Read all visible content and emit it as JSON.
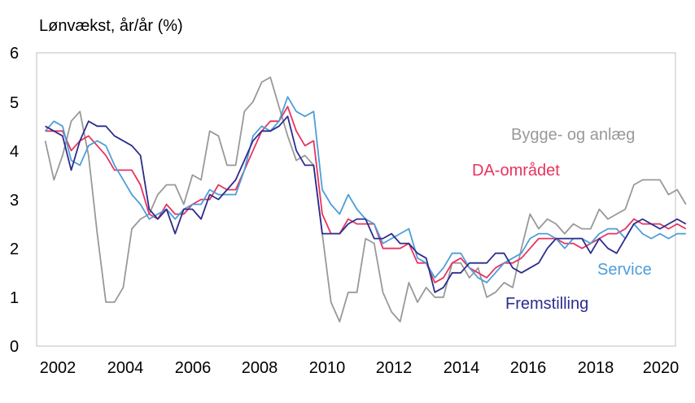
{
  "chart_data": {
    "type": "line",
    "title": "",
    "ylabel": "Lønvækst, år/år (%)",
    "xlabel": "",
    "xlim": [
      2001.75,
      2020.2
    ],
    "ylim": [
      0,
      6
    ],
    "x_ticks": [
      "2002",
      "2004",
      "2006",
      "2008",
      "2010",
      "2012",
      "2014",
      "2016",
      "2018",
      "2020"
    ],
    "y_ticks": [
      "0",
      "1",
      "2",
      "3",
      "4",
      "5",
      "6"
    ],
    "grid": false,
    "x_start": 2002,
    "x_step": 0.25,
    "series": [
      {
        "name": "Bygge- og anlæg",
        "color": "#999999",
        "values": [
          4.2,
          3.4,
          3.9,
          4.6,
          4.8,
          3.9,
          2.3,
          0.9,
          0.9,
          1.2,
          2.4,
          2.6,
          2.7,
          3.1,
          3.3,
          3.3,
          2.9,
          3.5,
          3.4,
          4.4,
          4.3,
          3.7,
          3.7,
          4.8,
          5.0,
          5.4,
          5.5,
          4.9,
          4.3,
          3.8,
          3.9,
          3.7,
          2.3,
          0.9,
          0.5,
          1.1,
          1.1,
          2.2,
          2.1,
          1.1,
          0.7,
          0.5,
          1.3,
          0.9,
          1.2,
          1.0,
          1.0,
          1.7,
          1.7,
          1.4,
          1.6,
          1.0,
          1.1,
          1.3,
          1.2,
          2.0,
          2.7,
          2.4,
          2.6,
          2.5,
          2.3,
          2.5,
          2.4,
          2.4,
          2.8,
          2.6,
          2.7,
          2.8,
          3.3,
          3.4,
          3.4,
          3.4,
          3.1,
          3.2,
          2.9
        ]
      },
      {
        "name": "DA-området",
        "color": "#e8335e",
        "values": [
          4.4,
          4.4,
          4.4,
          4.0,
          4.2,
          4.3,
          4.1,
          3.9,
          3.6,
          3.6,
          3.6,
          3.3,
          2.7,
          2.6,
          2.9,
          2.7,
          2.7,
          2.9,
          3.0,
          3.0,
          3.3,
          3.2,
          3.2,
          3.6,
          4.0,
          4.4,
          4.6,
          4.6,
          4.9,
          4.4,
          4.1,
          4.2,
          2.7,
          2.3,
          2.3,
          2.6,
          2.5,
          2.5,
          2.5,
          2.0,
          2.0,
          2.0,
          2.1,
          1.7,
          1.7,
          1.3,
          1.4,
          1.7,
          1.8,
          1.6,
          1.5,
          1.4,
          1.6,
          1.7,
          1.7,
          1.8,
          2.0,
          2.2,
          2.2,
          2.2,
          2.1,
          2.1,
          2.0,
          2.1,
          2.2,
          2.3,
          2.3,
          2.4,
          2.6,
          2.5,
          2.5,
          2.5,
          2.4,
          2.5,
          2.4
        ]
      },
      {
        "name": "Service",
        "color": "#4d9ed8",
        "values": [
          4.4,
          4.6,
          4.5,
          3.8,
          3.7,
          4.1,
          4.2,
          4.1,
          3.7,
          3.4,
          3.1,
          2.9,
          2.6,
          2.7,
          2.8,
          2.6,
          2.8,
          2.9,
          2.9,
          3.2,
          3.1,
          3.1,
          3.1,
          3.6,
          4.3,
          4.5,
          4.4,
          4.6,
          5.1,
          4.8,
          4.7,
          4.8,
          3.2,
          2.9,
          2.7,
          3.1,
          2.8,
          2.6,
          2.5,
          2.1,
          2.2,
          2.3,
          2.4,
          1.8,
          1.7,
          1.4,
          1.6,
          1.9,
          1.9,
          1.6,
          1.4,
          1.3,
          1.5,
          1.7,
          1.8,
          1.9,
          2.2,
          2.3,
          2.3,
          2.2,
          2.0,
          2.2,
          2.2,
          2.1,
          2.3,
          2.4,
          2.4,
          2.2,
          2.5,
          2.3,
          2.2,
          2.3,
          2.2,
          2.3,
          2.3
        ]
      },
      {
        "name": "Fremstilling",
        "color": "#2b2d8c",
        "values": [
          4.5,
          4.4,
          4.3,
          3.6,
          4.2,
          4.6,
          4.5,
          4.5,
          4.3,
          4.2,
          4.1,
          3.9,
          2.8,
          2.6,
          2.8,
          2.3,
          2.8,
          2.8,
          2.6,
          3.1,
          3.0,
          3.2,
          3.4,
          3.8,
          4.2,
          4.4,
          4.4,
          4.5,
          4.7,
          4.0,
          3.7,
          3.7,
          2.3,
          2.3,
          2.3,
          2.5,
          2.6,
          2.6,
          2.2,
          2.2,
          2.3,
          2.1,
          2.1,
          1.9,
          1.8,
          1.1,
          1.2,
          1.5,
          1.5,
          1.7,
          1.7,
          1.7,
          1.9,
          1.9,
          1.6,
          1.5,
          1.6,
          1.7,
          2.0,
          2.2,
          2.2,
          2.2,
          2.2,
          1.9,
          2.2,
          2.0,
          1.9,
          2.2,
          2.5,
          2.6,
          2.5,
          2.4,
          2.5,
          2.6,
          2.5
        ]
      }
    ],
    "annotations": [
      {
        "text": "Bygge- og anlæg",
        "color": "#999999"
      },
      {
        "text": "DA-området",
        "color": "#e8335e"
      },
      {
        "text": "Service",
        "color": "#4d9ed8"
      },
      {
        "text": "Fremstilling",
        "color": "#2b2d8c"
      }
    ]
  }
}
